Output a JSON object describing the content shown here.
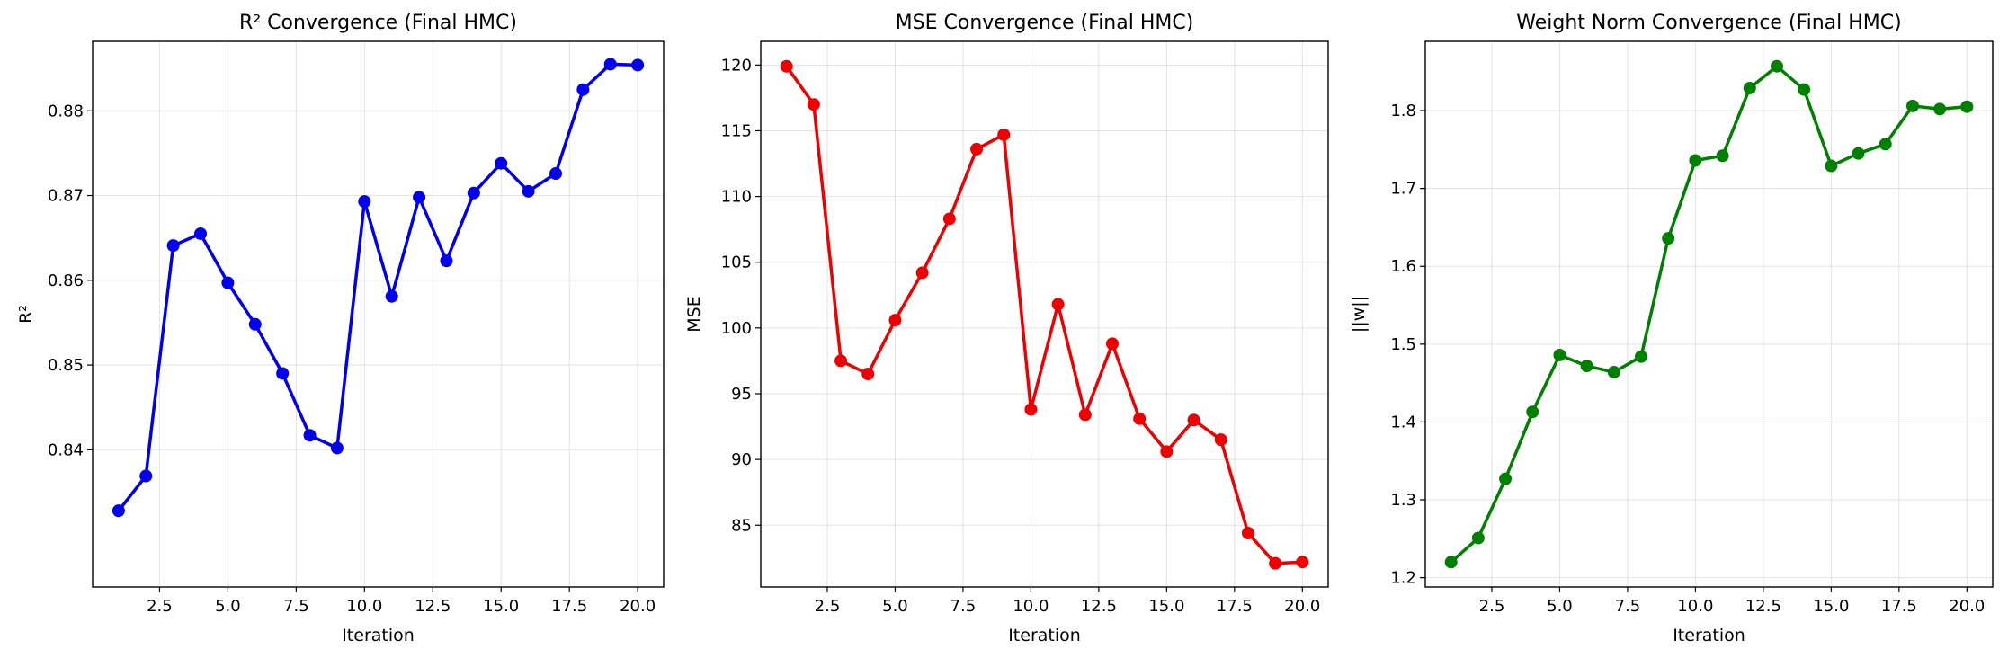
{
  "chart_data": [
    {
      "type": "line",
      "title": "R² Convergence (Final HMC)",
      "xlabel": "Iteration",
      "ylabel": "R²",
      "color": "#0000ee",
      "x": [
        1,
        2,
        3,
        4,
        5,
        6,
        7,
        8,
        9,
        10,
        11,
        12,
        13,
        14,
        15,
        16,
        17,
        18,
        19,
        20
      ],
      "y": [
        0.8328,
        0.8369,
        0.8641,
        0.8655,
        0.8597,
        0.8548,
        0.849,
        0.8417,
        0.8402,
        0.8693,
        0.8581,
        0.8698,
        0.8623,
        0.8703,
        0.8738,
        0.8705,
        0.8726,
        0.8825,
        0.8855,
        0.8854
      ],
      "xlim": [
        0.05,
        20.95
      ],
      "ylim": [
        0.8238,
        0.8882
      ],
      "xticks": [
        2.5,
        5.0,
        7.5,
        10.0,
        12.5,
        15.0,
        17.5,
        20.0
      ],
      "xtick_labels": [
        "2.5",
        "5.0",
        "7.5",
        "10.0",
        "12.5",
        "15.0",
        "17.5",
        "20.0"
      ],
      "yticks": [
        0.84,
        0.85,
        0.86,
        0.87,
        0.88
      ],
      "ytick_labels": [
        "0.84",
        "0.85",
        "0.86",
        "0.87",
        "0.88"
      ],
      "grid": true
    },
    {
      "type": "line",
      "title": "MSE Convergence (Final HMC)",
      "xlabel": "Iteration",
      "ylabel": "MSE",
      "color": "#ee0000",
      "x": [
        1,
        2,
        3,
        4,
        5,
        6,
        7,
        8,
        9,
        10,
        11,
        12,
        13,
        14,
        15,
        16,
        17,
        18,
        19,
        20
      ],
      "y": [
        119.9,
        117.0,
        97.5,
        96.5,
        100.6,
        104.2,
        108.3,
        113.6,
        114.7,
        93.8,
        101.8,
        93.4,
        98.8,
        93.1,
        90.6,
        93.0,
        91.5,
        84.4,
        82.1,
        82.2
      ],
      "xlim": [
        0.05,
        20.95
      ],
      "ylim": [
        80.3,
        121.8
      ],
      "xticks": [
        2.5,
        5.0,
        7.5,
        10.0,
        12.5,
        15.0,
        17.5,
        20.0
      ],
      "xtick_labels": [
        "2.5",
        "5.0",
        "7.5",
        "10.0",
        "12.5",
        "15.0",
        "17.5",
        "20.0"
      ],
      "yticks": [
        85,
        90,
        95,
        100,
        105,
        110,
        115,
        120
      ],
      "ytick_labels": [
        "85",
        "90",
        "95",
        "100",
        "105",
        "110",
        "115",
        "120"
      ],
      "grid": true
    },
    {
      "type": "line",
      "title": "Weight Norm Convergence (Final HMC)",
      "xlabel": "Iteration",
      "ylabel": "||w||",
      "color": "#008000",
      "x": [
        1,
        2,
        3,
        4,
        5,
        6,
        7,
        8,
        9,
        10,
        11,
        12,
        13,
        14,
        15,
        16,
        17,
        18,
        19,
        20
      ],
      "y": [
        1.22,
        1.251,
        1.327,
        1.413,
        1.486,
        1.472,
        1.464,
        1.484,
        1.636,
        1.736,
        1.742,
        1.829,
        1.857,
        1.827,
        1.729,
        1.745,
        1.757,
        1.806,
        1.802,
        1.805
      ],
      "xlim": [
        0.05,
        20.95
      ],
      "ylim": [
        1.188,
        1.889
      ],
      "xticks": [
        2.5,
        5.0,
        7.5,
        10.0,
        12.5,
        15.0,
        17.5,
        20.0
      ],
      "xtick_labels": [
        "2.5",
        "5.0",
        "7.5",
        "10.0",
        "12.5",
        "15.0",
        "17.5",
        "20.0"
      ],
      "yticks": [
        1.2,
        1.3,
        1.4,
        1.5,
        1.6,
        1.7,
        1.8
      ],
      "ytick_labels": [
        "1.2",
        "1.3",
        "1.4",
        "1.5",
        "1.6",
        "1.7",
        "1.8"
      ],
      "grid": true
    }
  ]
}
